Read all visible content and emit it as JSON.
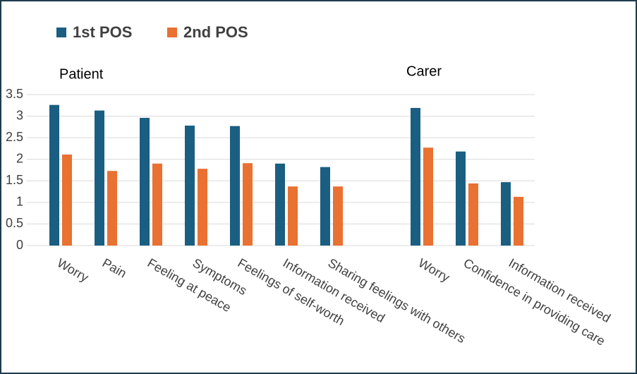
{
  "chart_data": {
    "type": "bar",
    "annotations": [
      "Patient",
      "Carer"
    ],
    "categories": [
      "Worry",
      "Pain",
      "Feeling at peace",
      "Symptoms",
      "Feelings of self-worth",
      "Information received",
      "Sharing feelings with others",
      null,
      "Worry",
      "Confidence in providing care",
      "Information received"
    ],
    "series": [
      {
        "name": "1st POS",
        "color": "#1a5e82",
        "values": [
          3.26,
          3.13,
          2.96,
          2.78,
          2.77,
          1.9,
          1.82,
          null,
          3.19,
          2.18,
          1.47
        ]
      },
      {
        "name": "2nd POS",
        "color": "#e97132",
        "values": [
          2.11,
          1.73,
          1.9,
          1.78,
          1.91,
          1.37,
          1.37,
          null,
          2.27,
          1.44,
          1.13
        ]
      }
    ],
    "ylim": [
      0,
      3.5
    ],
    "yticks": [
      0,
      0.5,
      1,
      1.5,
      2,
      2.5,
      3,
      3.5
    ],
    "grid": true,
    "legend": "top-left"
  }
}
